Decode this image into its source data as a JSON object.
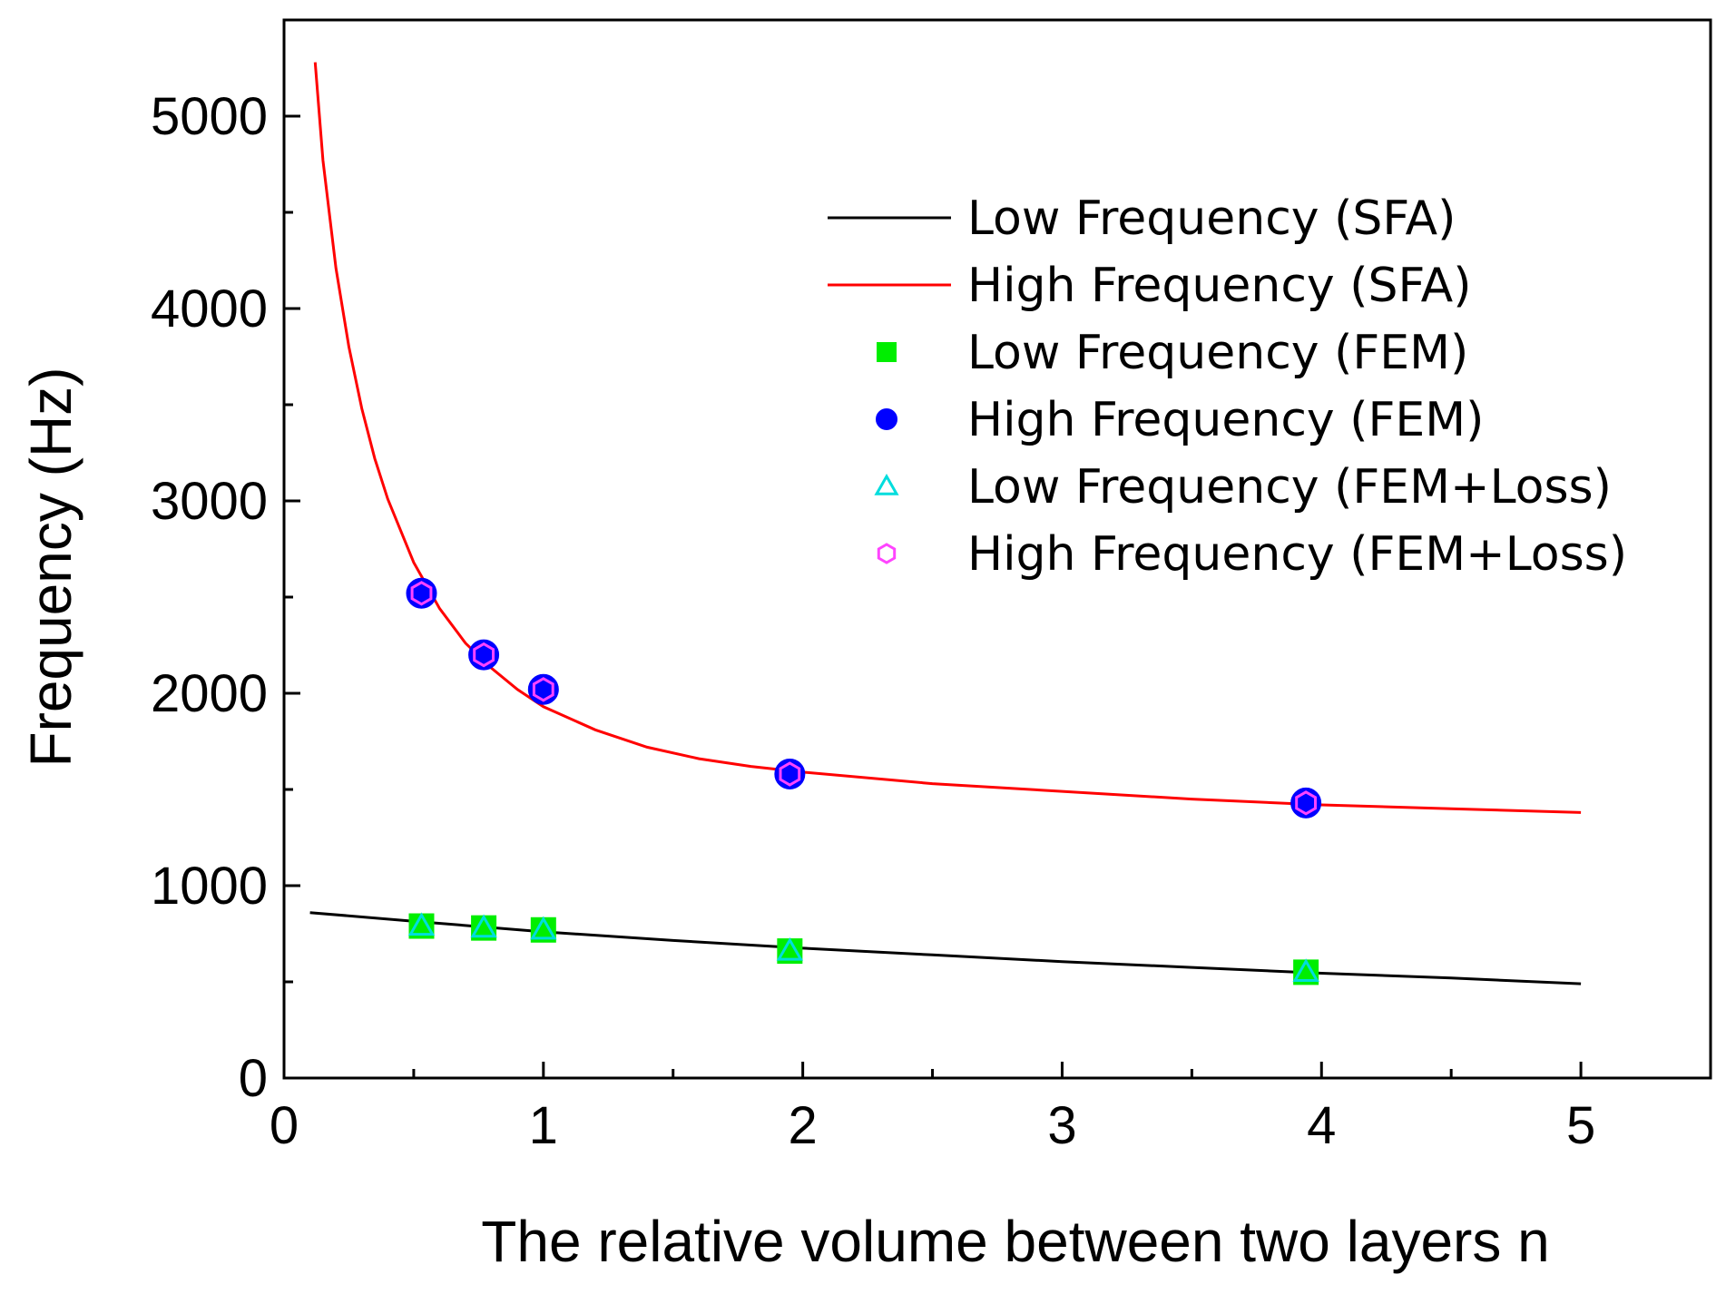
{
  "chart_data": {
    "type": "line",
    "title": "",
    "xlabel": "The relative volume between two layers n",
    "ylabel": "Frequency (Hz)",
    "xlim": [
      0,
      5.5
    ],
    "ylim": [
      0,
      5500
    ],
    "xticks": [
      0,
      1,
      2,
      3,
      4,
      5
    ],
    "xtick_labels": [
      "0",
      "1",
      "2",
      "3",
      "4",
      "5"
    ],
    "yticks": [
      0,
      1000,
      2000,
      3000,
      4000,
      5000
    ],
    "ytick_labels": [
      "0",
      "1000",
      "2000",
      "3000",
      "4000",
      "5000"
    ],
    "x_minor_step": 0.5,
    "y_minor_step": 500,
    "grid": false,
    "legend_position": "top-right",
    "series": [
      {
        "name": "Low Frequency (SFA)",
        "kind": "line",
        "color": "#000000",
        "x": [
          0.1,
          0.5,
          1.0,
          1.5,
          2.0,
          2.5,
          3.0,
          3.5,
          4.0,
          4.5,
          5.0
        ],
        "y": [
          860,
          815,
          760,
          715,
          675,
          640,
          605,
          575,
          545,
          520,
          490
        ]
      },
      {
        "name": "High Frequency (SFA)",
        "kind": "line",
        "color": "#ff0000",
        "x": [
          0.12,
          0.15,
          0.2,
          0.25,
          0.3,
          0.35,
          0.4,
          0.5,
          0.6,
          0.7,
          0.8,
          0.9,
          1.0,
          1.2,
          1.4,
          1.6,
          1.8,
          2.0,
          2.5,
          3.0,
          3.5,
          4.0,
          4.5,
          5.0
        ],
        "y": [
          5280,
          4770,
          4210,
          3800,
          3480,
          3220,
          3010,
          2680,
          2440,
          2260,
          2130,
          2020,
          1930,
          1810,
          1720,
          1660,
          1620,
          1590,
          1530,
          1490,
          1450,
          1420,
          1400,
          1380
        ]
      },
      {
        "name": "Low Frequency (FEM)",
        "kind": "marker",
        "marker": "square",
        "color": "#00ee00",
        "x": [
          0.53,
          0.77,
          1.0,
          1.95,
          3.94
        ],
        "y": [
          790,
          780,
          770,
          660,
          550
        ]
      },
      {
        "name": "High Frequency (FEM)",
        "kind": "marker",
        "marker": "circle",
        "color": "#0000ff",
        "x": [
          0.53,
          0.77,
          1.0,
          1.95,
          3.94
        ],
        "y": [
          2520,
          2200,
          2020,
          1580,
          1430
        ]
      },
      {
        "name": "Low Frequency (FEM+Loss)",
        "kind": "marker",
        "marker": "triangle",
        "color": "#00dddd",
        "x": [
          0.53,
          0.77,
          1.0,
          1.95,
          3.94
        ],
        "y": [
          790,
          780,
          770,
          660,
          550
        ]
      },
      {
        "name": "High Frequency (FEM+Loss)",
        "kind": "marker",
        "marker": "hexagon",
        "color": "#ff44ff",
        "x": [
          0.53,
          0.77,
          1.0,
          1.95,
          3.94
        ],
        "y": [
          2520,
          2200,
          2020,
          1580,
          1430
        ]
      }
    ]
  }
}
